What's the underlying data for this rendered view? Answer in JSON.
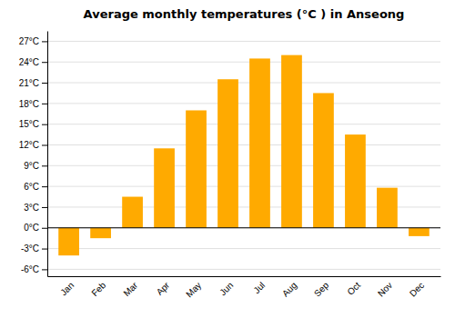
{
  "chart_data": {
    "type": "bar",
    "title": "Average monthly temperatures (°C ) in Anseong",
    "categories": [
      "Jan",
      "Feb",
      "Mar",
      "Apr",
      "May",
      "Jun",
      "Jul",
      "Aug",
      "Sep",
      "Oct",
      "Nov",
      "Dec"
    ],
    "values": [
      -4.0,
      -1.5,
      4.5,
      11.5,
      17.0,
      21.5,
      24.5,
      25.0,
      19.5,
      13.5,
      5.8,
      -1.2
    ],
    "color": "#FFAA00",
    "ylim": [
      -7.0,
      28.5
    ],
    "yticks": [
      {
        "value": -6,
        "label": "-6°C"
      },
      {
        "value": -3,
        "label": "-3°C"
      },
      {
        "value": 0,
        "label": "0°C"
      },
      {
        "value": 3,
        "label": "3°C"
      },
      {
        "value": 6,
        "label": "6°C"
      },
      {
        "value": 9,
        "label": "9°C"
      },
      {
        "value": 12,
        "label": "12°C"
      },
      {
        "value": 15,
        "label": "15°C"
      },
      {
        "value": 18,
        "label": "18°C"
      },
      {
        "value": 21,
        "label": "21°C"
      },
      {
        "value": 24,
        "label": "24°C"
      },
      {
        "value": 27,
        "label": "27°C"
      }
    ],
    "grid": true
  }
}
